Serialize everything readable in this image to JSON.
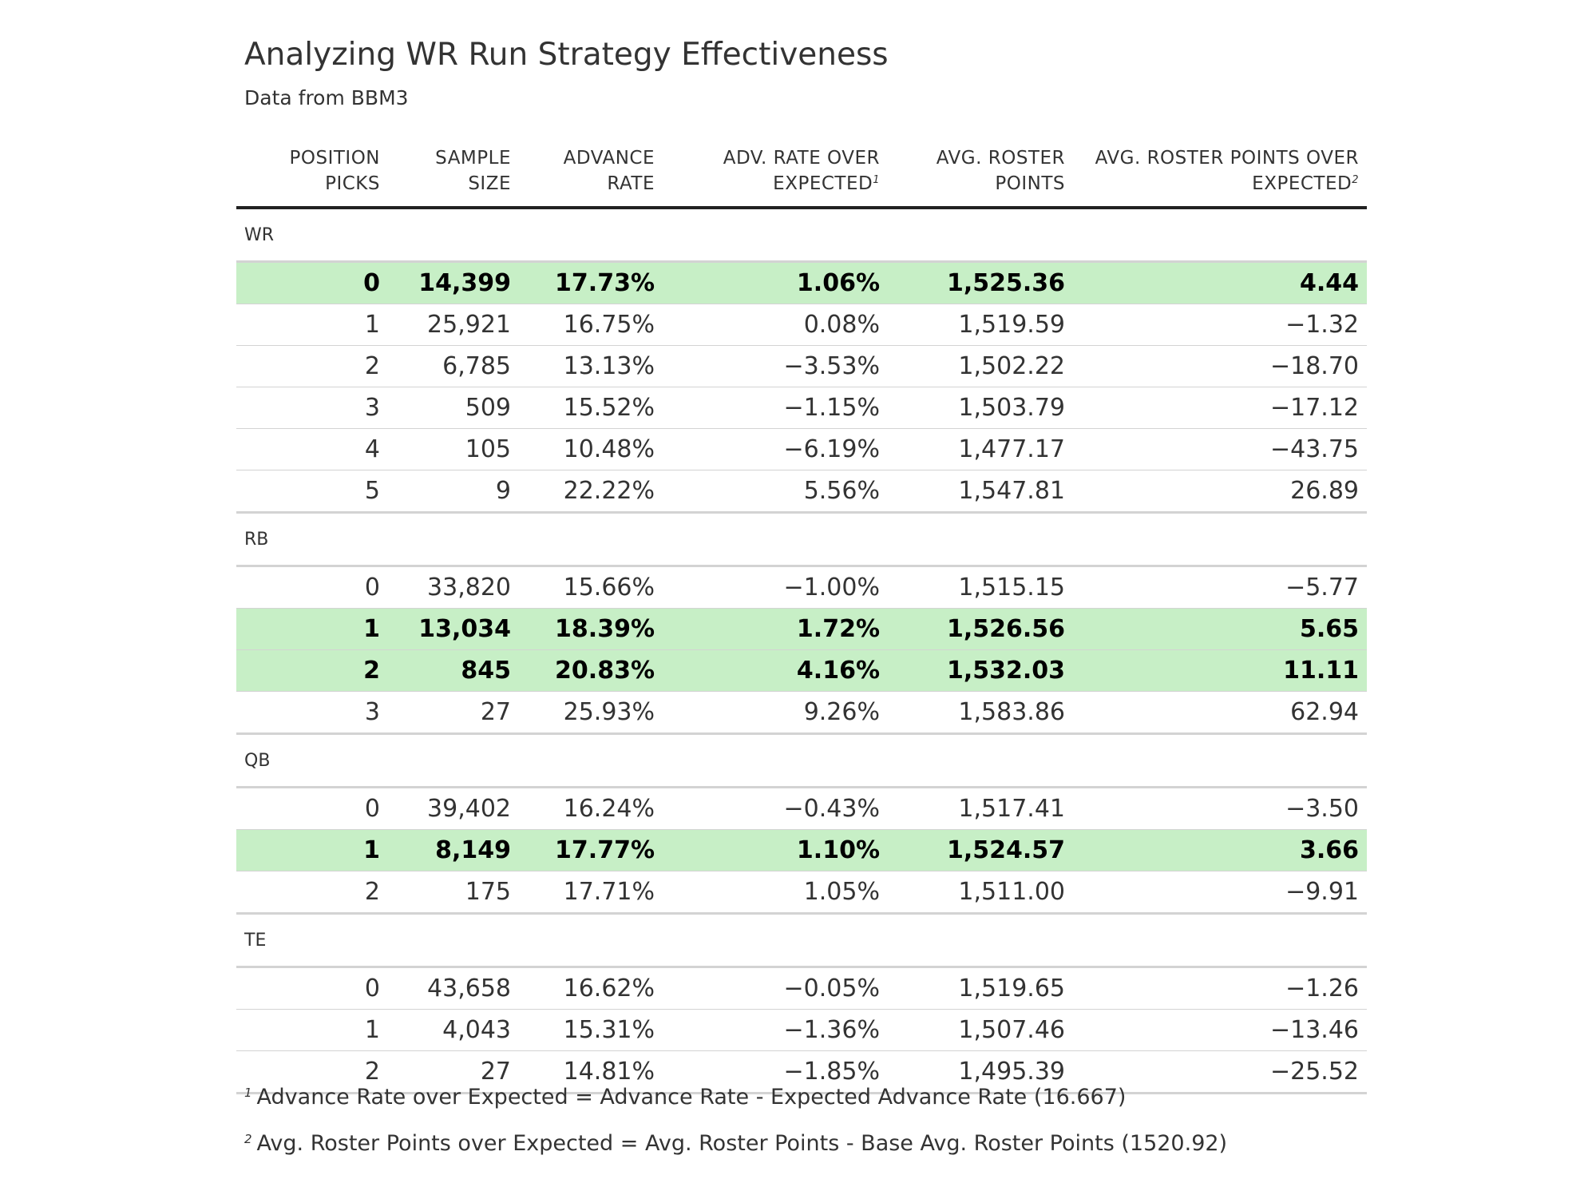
{
  "header": {
    "title": "Analyzing WR Run Strategy Effectiveness",
    "subtitle": "Data from BBM3"
  },
  "columns": [
    {
      "label": "POSITION PICKS",
      "line1": "POSITION",
      "line2": "PICKS",
      "footnote": ""
    },
    {
      "label": "SAMPLE SIZE",
      "line1": "SAMPLE",
      "line2": "SIZE",
      "footnote": ""
    },
    {
      "label": "ADVANCE RATE",
      "line1": "ADVANCE",
      "line2": "RATE",
      "footnote": ""
    },
    {
      "label": "ADV. RATE OVER EXPECTED",
      "line1": "ADV. RATE OVER",
      "line2": "EXPECTED",
      "footnote": "1"
    },
    {
      "label": "AVG. ROSTER POINTS",
      "line1": "AVG. ROSTER",
      "line2": "POINTS",
      "footnote": ""
    },
    {
      "label": "AVG. ROSTER POINTS OVER EXPECTED",
      "line1": "AVG. ROSTER POINTS OVER",
      "line2": "EXPECTED",
      "footnote": "2"
    }
  ],
  "groups": [
    {
      "name": "WR",
      "rows": [
        {
          "picks": "0",
          "sample": "14,399",
          "adv_rate": "17.73%",
          "adv_over": "1.06%",
          "avg_pts": "1,525.36",
          "pts_over": "4.44",
          "highlight": true
        },
        {
          "picks": "1",
          "sample": "25,921",
          "adv_rate": "16.75%",
          "adv_over": "0.08%",
          "avg_pts": "1,519.59",
          "pts_over": "−1.32",
          "highlight": false
        },
        {
          "picks": "2",
          "sample": "6,785",
          "adv_rate": "13.13%",
          "adv_over": "−3.53%",
          "avg_pts": "1,502.22",
          "pts_over": "−18.70",
          "highlight": false
        },
        {
          "picks": "3",
          "sample": "509",
          "adv_rate": "15.52%",
          "adv_over": "−1.15%",
          "avg_pts": "1,503.79",
          "pts_over": "−17.12",
          "highlight": false
        },
        {
          "picks": "4",
          "sample": "105",
          "adv_rate": "10.48%",
          "adv_over": "−6.19%",
          "avg_pts": "1,477.17",
          "pts_over": "−43.75",
          "highlight": false
        },
        {
          "picks": "5",
          "sample": "9",
          "adv_rate": "22.22%",
          "adv_over": "5.56%",
          "avg_pts": "1,547.81",
          "pts_over": "26.89",
          "highlight": false
        }
      ]
    },
    {
      "name": "RB",
      "rows": [
        {
          "picks": "0",
          "sample": "33,820",
          "adv_rate": "15.66%",
          "adv_over": "−1.00%",
          "avg_pts": "1,515.15",
          "pts_over": "−5.77",
          "highlight": false
        },
        {
          "picks": "1",
          "sample": "13,034",
          "adv_rate": "18.39%",
          "adv_over": "1.72%",
          "avg_pts": "1,526.56",
          "pts_over": "5.65",
          "highlight": true
        },
        {
          "picks": "2",
          "sample": "845",
          "adv_rate": "20.83%",
          "adv_over": "4.16%",
          "avg_pts": "1,532.03",
          "pts_over": "11.11",
          "highlight": true
        },
        {
          "picks": "3",
          "sample": "27",
          "adv_rate": "25.93%",
          "adv_over": "9.26%",
          "avg_pts": "1,583.86",
          "pts_over": "62.94",
          "highlight": false
        }
      ]
    },
    {
      "name": "QB",
      "rows": [
        {
          "picks": "0",
          "sample": "39,402",
          "adv_rate": "16.24%",
          "adv_over": "−0.43%",
          "avg_pts": "1,517.41",
          "pts_over": "−3.50",
          "highlight": false
        },
        {
          "picks": "1",
          "sample": "8,149",
          "adv_rate": "17.77%",
          "adv_over": "1.10%",
          "avg_pts": "1,524.57",
          "pts_over": "3.66",
          "highlight": true
        },
        {
          "picks": "2",
          "sample": "175",
          "adv_rate": "17.71%",
          "adv_over": "1.05%",
          "avg_pts": "1,511.00",
          "pts_over": "−9.91",
          "highlight": false
        }
      ]
    },
    {
      "name": "TE",
      "rows": [
        {
          "picks": "0",
          "sample": "43,658",
          "adv_rate": "16.62%",
          "adv_over": "−0.05%",
          "avg_pts": "1,519.65",
          "pts_over": "−1.26",
          "highlight": false
        },
        {
          "picks": "1",
          "sample": "4,043",
          "adv_rate": "15.31%",
          "adv_over": "−1.36%",
          "avg_pts": "1,507.46",
          "pts_over": "−13.46",
          "highlight": false
        },
        {
          "picks": "2",
          "sample": "27",
          "adv_rate": "14.81%",
          "adv_over": "−1.85%",
          "avg_pts": "1,495.39",
          "pts_over": "−25.52",
          "highlight": false
        }
      ]
    }
  ],
  "footnotes": [
    {
      "mark": "1",
      "text": "Advance Rate over Expected = Advance Rate - Expected Advance Rate (16.667)"
    },
    {
      "mark": "2",
      "text": "Avg. Roster Points over Expected = Avg. Roster Points - Base Avg. Roster Points (1520.92)"
    }
  ],
  "colors": {
    "highlight_row": "#c7efc6",
    "header_rule": "#222222",
    "row_rule": "#d3d3d3",
    "text": "#333333"
  }
}
